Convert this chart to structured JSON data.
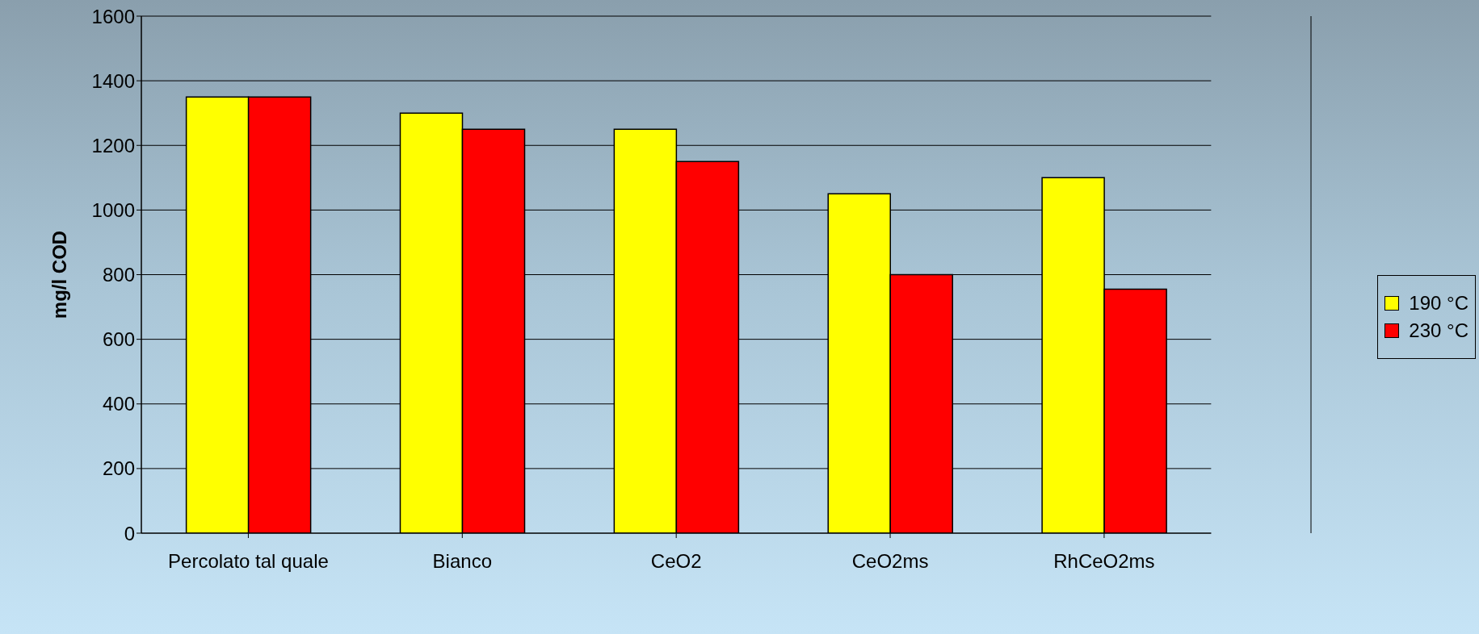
{
  "chart_data": {
    "type": "bar",
    "ylabel": "mg/l COD",
    "categories": [
      "Percolato tal quale",
      "Bianco",
      "CeO2",
      "CeO2ms",
      "RhCeO2ms"
    ],
    "series": [
      {
        "name": "190 °C",
        "color": "#ffff00",
        "values": [
          1350,
          1300,
          1250,
          1050,
          1100
        ]
      },
      {
        "name": "230 °C",
        "color": "#ff0000",
        "values": [
          1350,
          1250,
          1150,
          800,
          755
        ]
      }
    ],
    "ylim": [
      0,
      1600
    ],
    "yticks": [
      0,
      200,
      400,
      600,
      800,
      1000,
      1200,
      1400,
      1600
    ],
    "grid": "y",
    "legend": "right"
  }
}
